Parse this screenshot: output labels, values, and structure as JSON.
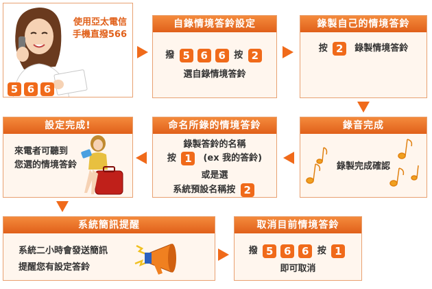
{
  "intro": {
    "line1": "使用亞太電信",
    "line2": "手機直撥566",
    "keys": [
      "5",
      "6",
      "6"
    ]
  },
  "step1": {
    "title": "自錄情境答鈴設定",
    "dial_prefix": "撥",
    "keys": [
      "5",
      "6",
      "6"
    ],
    "press": "按",
    "option_key": "2",
    "line2": "選自錄情境答鈴"
  },
  "step2": {
    "title": "錄製自己的情境答鈴",
    "press": "按",
    "key": "2",
    "text": "錄製情境答鈴"
  },
  "step3": {
    "title": "錄音完成",
    "text": "錄製完成確認"
  },
  "step4": {
    "title": "命名所錄的情境答鈴",
    "line1": "錄製答鈴的名稱",
    "press": "按",
    "key1": "1",
    "line2_suffix": "(ex 我的答鈴)",
    "line3": "或是選",
    "line4": "系統預設名稱按",
    "key2": "2"
  },
  "step5": {
    "title": "設定完成!",
    "line1": "來電者可聽到",
    "line2": "您選的情境答鈴"
  },
  "step6": {
    "title": "系統簡訊提醒",
    "line1": "系統二小時會發送簡訊",
    "line2": "提醒您有設定答鈴"
  },
  "step7": {
    "title": "取消目前情境答鈴",
    "dial_prefix": "撥",
    "keys": [
      "5",
      "6",
      "6"
    ],
    "press": "按",
    "key": "1",
    "line2": "即可取消"
  },
  "colors": {
    "accent": "#f06a1a",
    "header": "#e0601a",
    "panel": "#fff6ee",
    "border": "#e8a070"
  }
}
